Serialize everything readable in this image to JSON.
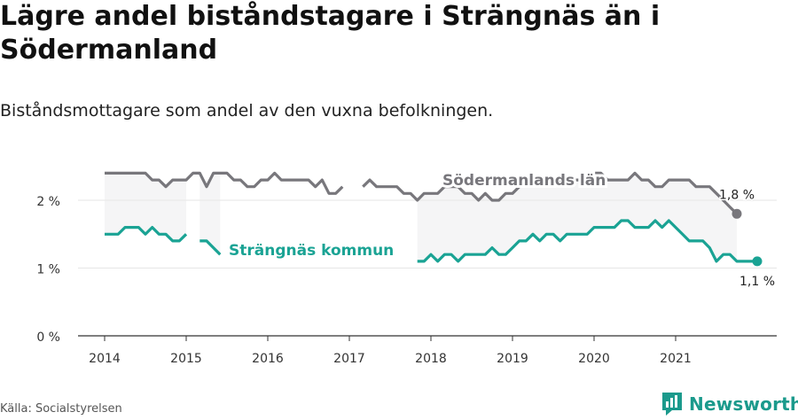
{
  "header": {
    "title": "Lägre andel biståndstagare i Strängnäs än i Södermanland",
    "subtitle": "Biståndsmottagare som andel av den vuxna befolkningen."
  },
  "footer": {
    "source": "Källa: Socialstyrelsen",
    "brand": "Newsworthy"
  },
  "colors": {
    "region": "#78777c",
    "municipality": "#1aa394",
    "band": "#f5f5f6",
    "grid": "#e6e6e6",
    "axis": "#333333"
  },
  "chart_data": {
    "type": "line",
    "x_start": "2014-01",
    "x_ticks": [
      "2014",
      "2015",
      "2016",
      "2017",
      "2018",
      "2019",
      "2020",
      "2021"
    ],
    "y_ticks": [
      "0 %",
      "1 %",
      "2 %"
    ],
    "y_tick_values": [
      0,
      1,
      2
    ],
    "ylim": [
      0,
      2.6
    ],
    "grid": true,
    "shaded_band_between_series": true,
    "series": [
      {
        "name": "Södermanlands län",
        "key": "region",
        "end_label": "1,8 %",
        "values": [
          2.4,
          2.4,
          2.4,
          2.4,
          2.4,
          2.4,
          2.4,
          2.3,
          2.3,
          2.2,
          2.3,
          2.3,
          2.3,
          2.4,
          2.4,
          2.2,
          2.4,
          2.4,
          2.4,
          2.3,
          2.3,
          2.2,
          2.2,
          2.3,
          2.3,
          2.4,
          2.3,
          2.3,
          2.3,
          2.3,
          2.3,
          2.2,
          2.3,
          2.1,
          2.1,
          2.2,
          null,
          null,
          2.2,
          2.3,
          2.2,
          2.2,
          2.2,
          2.2,
          2.1,
          2.1,
          2.0,
          2.1,
          2.1,
          2.1,
          2.2,
          2.2,
          2.2,
          2.1,
          2.1,
          2.0,
          2.1,
          2.0,
          2.0,
          2.1,
          2.1,
          2.2,
          2.3,
          2.3,
          2.3,
          2.3,
          2.3,
          2.3,
          2.3,
          2.3,
          2.3,
          2.4,
          2.4,
          2.4,
          2.3,
          2.3,
          2.3,
          2.3,
          2.4,
          2.3,
          2.3,
          2.2,
          2.2,
          2.3,
          2.3,
          2.3,
          2.3,
          2.2,
          2.2,
          2.2,
          2.1,
          2.0,
          1.9,
          1.8
        ]
      },
      {
        "name": "Strängnäs kommun",
        "key": "municipality",
        "end_label": "1,1 %",
        "values": [
          1.5,
          1.5,
          1.5,
          1.6,
          1.6,
          1.6,
          1.5,
          1.6,
          1.5,
          1.5,
          1.4,
          1.4,
          1.5,
          null,
          1.4,
          1.4,
          1.3,
          1.2,
          null,
          null,
          null,
          null,
          null,
          null,
          null,
          null,
          null,
          null,
          null,
          null,
          null,
          null,
          null,
          null,
          null,
          null,
          null,
          null,
          null,
          null,
          null,
          null,
          null,
          null,
          null,
          null,
          1.1,
          1.1,
          1.2,
          1.1,
          1.2,
          1.2,
          1.1,
          1.2,
          1.2,
          1.2,
          1.2,
          1.3,
          1.2,
          1.2,
          1.3,
          1.4,
          1.4,
          1.5,
          1.4,
          1.5,
          1.5,
          1.4,
          1.5,
          1.5,
          1.5,
          1.5,
          1.6,
          1.6,
          1.6,
          1.6,
          1.7,
          1.7,
          1.6,
          1.6,
          1.6,
          1.7,
          1.6,
          1.7,
          1.6,
          1.5,
          1.4,
          1.4,
          1.4,
          1.3,
          1.1,
          1.2,
          1.2,
          1.1,
          1.1,
          1.1,
          1.1
        ]
      }
    ]
  }
}
